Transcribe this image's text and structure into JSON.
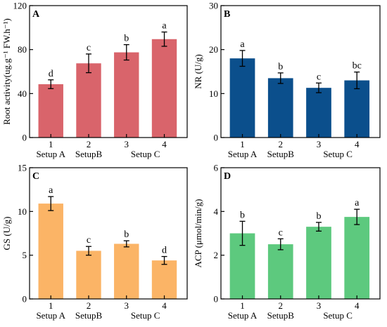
{
  "chart_data": [
    {
      "type": "bar",
      "panel": "A",
      "ylabel": "Root activity(ug.g⁻¹ FW.h⁻¹)",
      "ylim": [
        0,
        120
      ],
      "yticks": [
        0,
        40,
        80,
        120
      ],
      "categories": [
        "1",
        "2",
        "3",
        "4"
      ],
      "values": [
        48.5,
        67.5,
        77.5,
        89.5
      ],
      "errors": [
        4,
        8.5,
        7,
        6.5
      ],
      "significance": [
        "d",
        "c",
        "b",
        "a"
      ],
      "group_labels": [
        "Setup A",
        "SetupB",
        "Setup C"
      ],
      "color": "#d9646b"
    },
    {
      "type": "bar",
      "panel": "B",
      "ylabel": "NR (U/g)",
      "ylim": [
        0,
        30
      ],
      "yticks": [
        0,
        10,
        20,
        30
      ],
      "categories": [
        "1",
        "2",
        "3",
        "4"
      ],
      "values": [
        18,
        13.5,
        11.3,
        13
      ],
      "errors": [
        1.8,
        1.2,
        1.1,
        1.9
      ],
      "significance": [
        "a",
        "b",
        "c",
        "bc"
      ],
      "group_labels": [
        "Setup A",
        "SetupB",
        "Setup C"
      ],
      "color": "#0b4f8c"
    },
    {
      "type": "bar",
      "panel": "C",
      "ylabel": "GS (U/g)",
      "ylim": [
        0,
        15
      ],
      "yticks": [
        0,
        5,
        10,
        15
      ],
      "categories": [
        "1",
        "2",
        "3",
        "4"
      ],
      "values": [
        10.9,
        5.5,
        6.3,
        4.4
      ],
      "errors": [
        0.8,
        0.5,
        0.35,
        0.45
      ],
      "significance": [
        "a",
        "c",
        "b",
        "d"
      ],
      "group_labels": [
        "Setup A",
        "SetupB",
        "Setup C"
      ],
      "color": "#fbb466"
    },
    {
      "type": "bar",
      "panel": "D",
      "ylabel": "ACP (μmol/min/g)",
      "ylim": [
        0,
        6
      ],
      "yticks": [
        0,
        2,
        4,
        6
      ],
      "categories": [
        "1",
        "2",
        "3",
        "4"
      ],
      "values": [
        3,
        2.5,
        3.3,
        3.75
      ],
      "errors": [
        0.55,
        0.25,
        0.2,
        0.35
      ],
      "significance": [
        "b",
        "c",
        "b",
        "a"
      ],
      "group_labels": [
        "Setup A",
        "SetupB",
        "Setup C"
      ],
      "color": "#5dc97e"
    }
  ]
}
